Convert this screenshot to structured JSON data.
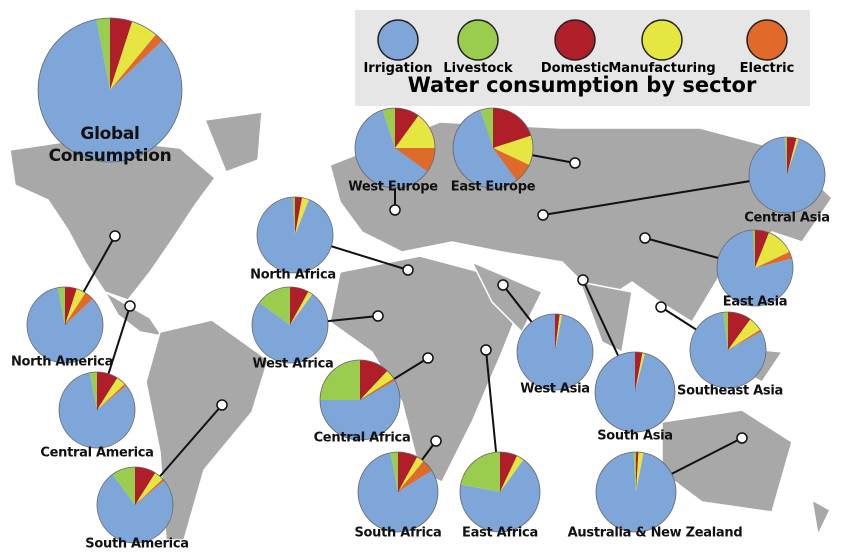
{
  "title": "Water consumption by sector",
  "sectors": [
    {
      "name": "Irrigation",
      "color": "#7fa6d8"
    },
    {
      "name": "Livestock",
      "color": "#9acd4e"
    },
    {
      "name": "Domestic",
      "color": "#b01e2a"
    },
    {
      "name": "Manufacturing",
      "color": "#e6e640"
    },
    {
      "name": "Electric",
      "color": "#e06a2a"
    }
  ],
  "regions": [
    {
      "label": "Global Consumption",
      "values": [
        84,
        3,
        5,
        6,
        2
      ]
    },
    {
      "label": "West Europe",
      "values": [
        60,
        5,
        10,
        15,
        10
      ]
    },
    {
      "label": "East Europe",
      "values": [
        55,
        5,
        20,
        12,
        8
      ]
    },
    {
      "label": "Central Asia",
      "values": [
        94,
        1,
        4,
        1,
        0
      ]
    },
    {
      "label": "North Africa",
      "values": [
        93,
        1,
        3,
        3,
        0
      ]
    },
    {
      "label": "West Africa",
      "values": [
        75,
        15,
        8,
        2,
        0
      ]
    },
    {
      "label": "North America",
      "values": [
        84,
        3,
        5,
        4,
        4
      ]
    },
    {
      "label": "Central America",
      "values": [
        83,
        3,
        9,
        4,
        1
      ]
    },
    {
      "label": "South America",
      "values": [
        76,
        10,
        9,
        4,
        1
      ]
    },
    {
      "label": "Central Africa",
      "values": [
        58,
        25,
        12,
        4,
        1
      ]
    },
    {
      "label": "South Africa",
      "values": [
        81,
        3,
        8,
        3,
        5
      ]
    },
    {
      "label": "East Africa",
      "values": [
        68,
        22,
        7,
        3,
        0
      ]
    },
    {
      "label": "West Asia",
      "values": [
        97,
        0,
        2,
        1,
        0
      ]
    },
    {
      "label": "South Asia",
      "values": [
        96,
        0,
        3,
        1,
        0
      ]
    },
    {
      "label": "East Asia",
      "values": [
        78,
        1,
        6,
        12,
        3
      ]
    },
    {
      "label": "Southeast Asia",
      "values": [
        81,
        2,
        10,
        6,
        1
      ]
    },
    {
      "label": "Australia & New Zealand",
      "values": [
        96,
        1,
        1,
        2,
        0
      ]
    }
  ]
}
